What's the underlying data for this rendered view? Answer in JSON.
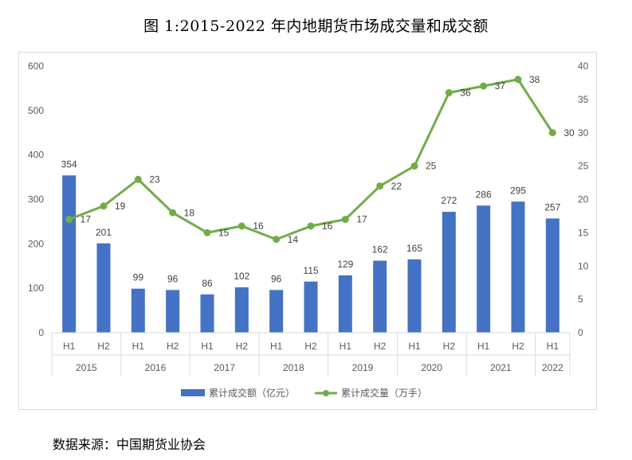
{
  "header": {
    "title": "图 1:2015-2022 年内地期货市场成交量和成交额"
  },
  "footer": {
    "source": "数据来源：中国期货业协会"
  },
  "colors": {
    "bar": "#4472C4",
    "line": "#70AD47",
    "axis_text": "#595959",
    "grid": "#d9d9d9"
  },
  "chart_data": {
    "type": "bar",
    "title": "图 1:2015-2022 年内地期货市场成交量和成交额",
    "categories": [
      "H1",
      "H2",
      "H1",
      "H2",
      "H1",
      "H2",
      "H1",
      "H2",
      "H1",
      "H2",
      "H1",
      "H2",
      "H1",
      "H2",
      "H1"
    ],
    "years": [
      {
        "label": "2015",
        "span": 2
      },
      {
        "label": "2016",
        "span": 2
      },
      {
        "label": "2017",
        "span": 2
      },
      {
        "label": "2018",
        "span": 2
      },
      {
        "label": "2019",
        "span": 2
      },
      {
        "label": "2020",
        "span": 2
      },
      {
        "label": "2021",
        "span": 2
      },
      {
        "label": "2022",
        "span": 1
      }
    ],
    "series": [
      {
        "name": "累计成交额（亿元）",
        "type": "bar",
        "axis": "left",
        "values": [
          354,
          201,
          99,
          96,
          86,
          102,
          96,
          115,
          129,
          162,
          165,
          272,
          286,
          295,
          257
        ]
      },
      {
        "name": "累计成交量（万手）",
        "type": "line",
        "axis": "right",
        "values": [
          17,
          19,
          23,
          18,
          15,
          16,
          14,
          16,
          17,
          22,
          25,
          36,
          37,
          38,
          30
        ]
      }
    ],
    "ylim_left": [
      0,
      600
    ],
    "yticks_left": [
      0,
      100,
      200,
      300,
      400,
      500,
      600
    ],
    "ylim_right": [
      0,
      40
    ],
    "yticks_right": [
      0,
      5,
      10,
      15,
      20,
      25,
      30,
      35,
      40
    ],
    "legend": "bottom",
    "grid": false
  }
}
